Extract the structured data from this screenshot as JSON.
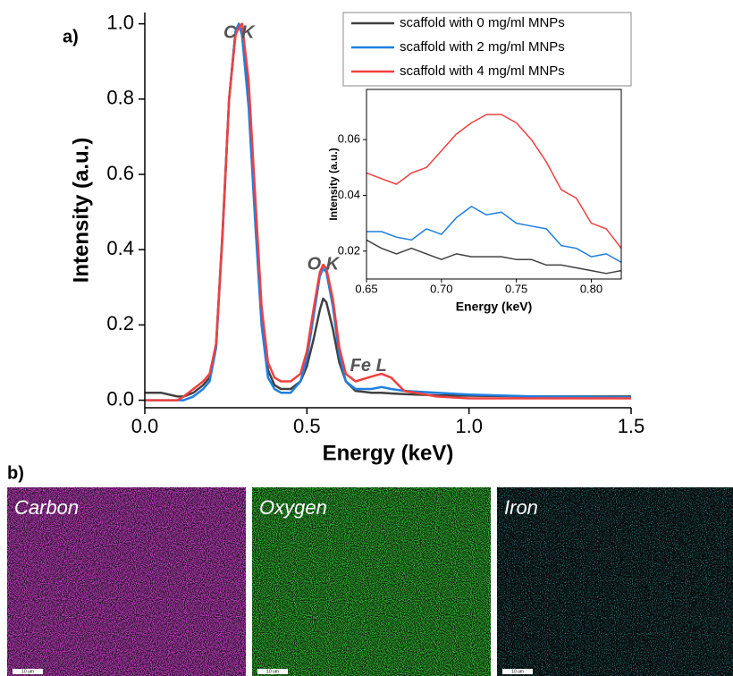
{
  "panel_labels": {
    "a": "a)",
    "b": "b)"
  },
  "chart_data": [
    {
      "type": "line",
      "xlabel": "Energy (keV)",
      "ylabel": "Intensity (a.u.)",
      "xlim": [
        0,
        1.5
      ],
      "ylim": [
        -0.02,
        1.03
      ],
      "xticks": [
        {
          "value": 0,
          "label": "0.0"
        },
        0.5,
        {
          "value": 1,
          "label": "1.0"
        },
        1.5
      ],
      "yticks": [
        {
          "value": 0,
          "label": "0.0"
        },
        0.2,
        0.4,
        0.6,
        0.8,
        {
          "value": 1,
          "label": "1.0"
        }
      ],
      "legend": "upper right",
      "annotations": [
        {
          "text": "C K",
          "x": 0.29,
          "y": 0.975
        },
        {
          "text": "O K",
          "x": 0.55,
          "y": 0.36
        },
        {
          "text": "Fe L",
          "x": 0.69,
          "y": 0.09
        }
      ],
      "x": [
        0,
        0.05,
        0.1,
        0.12,
        0.15,
        0.18,
        0.2,
        0.22,
        0.24,
        0.26,
        0.28,
        0.29,
        0.3,
        0.32,
        0.34,
        0.36,
        0.38,
        0.4,
        0.42,
        0.45,
        0.48,
        0.5,
        0.52,
        0.54,
        0.55,
        0.56,
        0.58,
        0.6,
        0.62,
        0.65,
        0.7,
        0.73,
        0.76,
        0.8,
        0.9,
        1.0,
        1.2,
        1.5
      ],
      "series": [
        {
          "name": "scaffold with 0 mg/ml MNPs",
          "color": "#404040",
          "values": [
            0.02,
            0.02,
            0.01,
            0.01,
            0.02,
            0.04,
            0.06,
            0.15,
            0.45,
            0.8,
            0.98,
            1.0,
            0.97,
            0.8,
            0.5,
            0.22,
            0.08,
            0.04,
            0.03,
            0.03,
            0.05,
            0.09,
            0.16,
            0.24,
            0.27,
            0.26,
            0.19,
            0.1,
            0.05,
            0.025,
            0.02,
            0.02,
            0.018,
            0.016,
            0.013,
            0.012,
            0.01,
            0.01
          ]
        },
        {
          "name": "scaffold with 2 mg/ml MNPs",
          "color": "#1f7fe0",
          "values": [
            0,
            0,
            0,
            0,
            0.01,
            0.03,
            0.05,
            0.14,
            0.44,
            0.8,
            0.98,
            1.0,
            0.97,
            0.78,
            0.48,
            0.2,
            0.06,
            0.03,
            0.02,
            0.02,
            0.05,
            0.11,
            0.22,
            0.33,
            0.35,
            0.34,
            0.25,
            0.12,
            0.05,
            0.03,
            0.03,
            0.035,
            0.03,
            0.025,
            0.02,
            0.015,
            0.01,
            0.008
          ]
        },
        {
          "name": "scaffold with 4 mg/ml MNPs",
          "color": "#f04040",
          "values": [
            0,
            0,
            0,
            0.01,
            0.03,
            0.05,
            0.07,
            0.15,
            0.44,
            0.8,
            0.97,
            0.99,
            1.0,
            0.85,
            0.55,
            0.25,
            0.1,
            0.06,
            0.05,
            0.05,
            0.07,
            0.13,
            0.24,
            0.34,
            0.36,
            0.35,
            0.27,
            0.14,
            0.07,
            0.05,
            0.063,
            0.07,
            0.06,
            0.025,
            0.01,
            0.005,
            0.005,
            0.005
          ]
        }
      ]
    },
    {
      "type": "line",
      "xlabel": "Energy (keV)",
      "ylabel": "Intensity (a.u.)",
      "xlim": [
        0.65,
        0.82
      ],
      "ylim": [
        0.01,
        0.078
      ],
      "xticks": [
        0.65,
        {
          "value": 0.7,
          "label": "0.70"
        },
        0.75,
        {
          "value": 0.8,
          "label": "0.80"
        }
      ],
      "yticks": [
        0.02,
        0.04,
        0.06
      ],
      "x": [
        0.65,
        0.66,
        0.67,
        0.68,
        0.69,
        0.7,
        0.71,
        0.72,
        0.73,
        0.74,
        0.75,
        0.76,
        0.77,
        0.78,
        0.79,
        0.8,
        0.81,
        0.82
      ],
      "series": [
        {
          "name": "scaffold with 0 mg/ml MNPs",
          "color": "#404040",
          "values": [
            0.024,
            0.021,
            0.019,
            0.021,
            0.019,
            0.017,
            0.019,
            0.018,
            0.018,
            0.018,
            0.017,
            0.017,
            0.015,
            0.015,
            0.014,
            0.013,
            0.012,
            0.013
          ]
        },
        {
          "name": "scaffold with 2 mg/ml MNPs",
          "color": "#1f7fe0",
          "values": [
            0.027,
            0.027,
            0.025,
            0.024,
            0.028,
            0.026,
            0.032,
            0.036,
            0.033,
            0.034,
            0.03,
            0.029,
            0.028,
            0.022,
            0.021,
            0.018,
            0.019,
            0.016
          ]
        },
        {
          "name": "scaffold with 4 mg/ml MNPs",
          "color": "#f04040",
          "values": [
            0.048,
            0.046,
            0.044,
            0.048,
            0.05,
            0.056,
            0.062,
            0.066,
            0.069,
            0.069,
            0.066,
            0.06,
            0.052,
            0.042,
            0.039,
            0.03,
            0.028,
            0.021
          ]
        }
      ]
    }
  ],
  "maps": [
    {
      "label": "Carbon",
      "color": "#d040d0",
      "scale_bar": "10 um"
    },
    {
      "label": "Oxygen",
      "color": "#30d030",
      "scale_bar": "10 um"
    },
    {
      "label": "Iron",
      "color": "#30d0e0",
      "scale_bar": "10 um"
    }
  ]
}
